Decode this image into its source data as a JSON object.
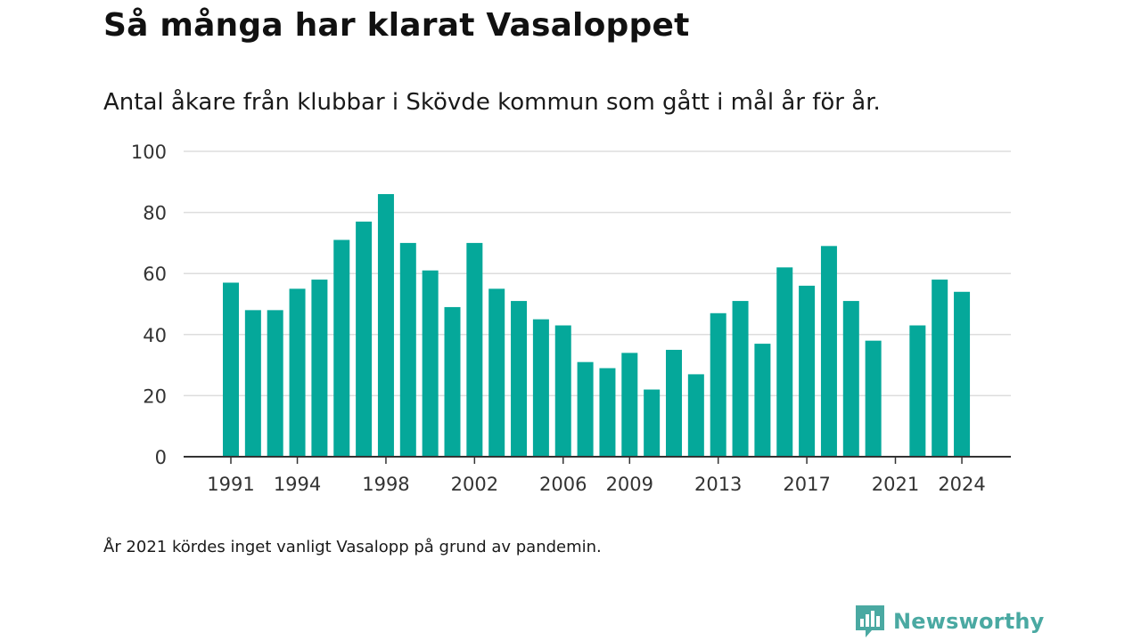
{
  "header": {
    "title": "Så många har klarat Vasaloppet",
    "subtitle": "Antal åkare från klubbar i Skövde kommun som gått i mål år för år."
  },
  "footnote": "År 2021 kördes inget vanligt Vasalopp på grund av pandemin.",
  "brand": {
    "name": "Newsworthy",
    "logo_icon": "newsworthy-bar-chart-logo",
    "color": "#4aa9a2"
  },
  "chart_data": {
    "type": "bar",
    "categories": [
      1991,
      1992,
      1993,
      1994,
      1995,
      1996,
      1997,
      1998,
      1999,
      2000,
      2001,
      2002,
      2003,
      2004,
      2005,
      2006,
      2007,
      2008,
      2009,
      2010,
      2011,
      2012,
      2013,
      2014,
      2015,
      2016,
      2017,
      2018,
      2019,
      2020,
      2021,
      2022,
      2023,
      2024
    ],
    "values": [
      57,
      48,
      48,
      55,
      58,
      71,
      77,
      86,
      70,
      61,
      49,
      70,
      55,
      51,
      45,
      43,
      31,
      29,
      34,
      22,
      35,
      27,
      47,
      51,
      37,
      62,
      56,
      69,
      51,
      38,
      null,
      43,
      58,
      54
    ],
    "x_tick_labels": [
      "1991",
      "1994",
      "1998",
      "2002",
      "2006",
      "2009",
      "2013",
      "2017",
      "2021",
      "2024"
    ],
    "y_ticks": [
      "0",
      "20",
      "40",
      "60",
      "80",
      "100"
    ],
    "ylim": [
      0,
      100
    ],
    "xlabel": "",
    "ylabel": "",
    "grid": true,
    "bar_color": "#05a89a",
    "grid_color": "#dddddd",
    "axis_color": "#333333"
  }
}
